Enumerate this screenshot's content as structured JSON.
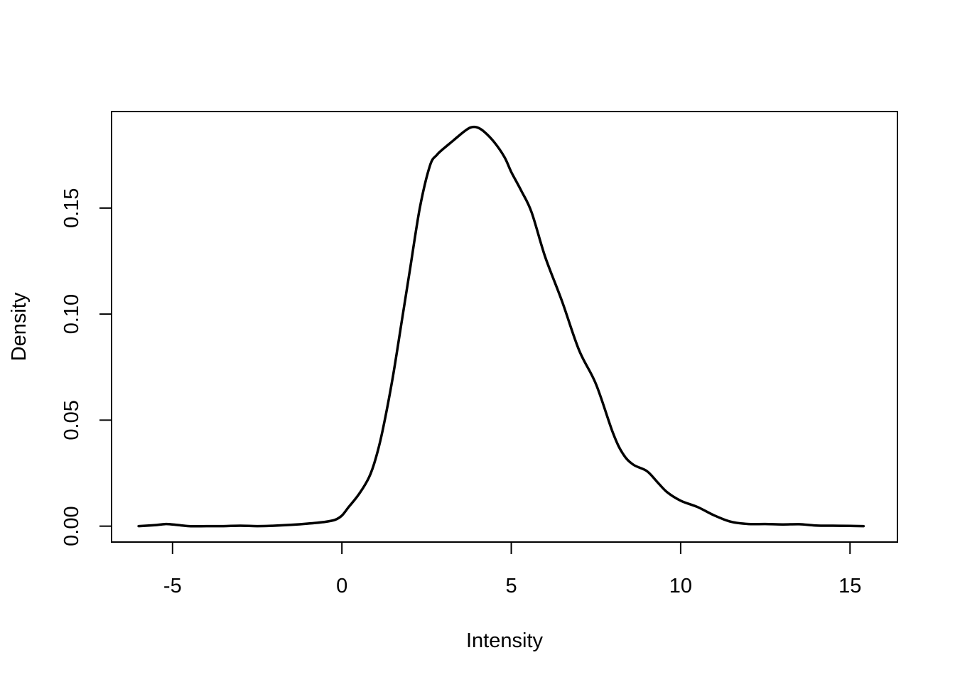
{
  "chart_data": {
    "type": "line",
    "title": "",
    "xlabel": "Intensity",
    "ylabel": "Density",
    "xlim": [
      -6.8,
      16.4
    ],
    "ylim": [
      -0.0075,
      0.1955
    ],
    "x_ticks": [
      -5,
      0,
      5,
      10,
      15
    ],
    "x_tick_labels": [
      "-5",
      "0",
      "5",
      "10",
      "15"
    ],
    "y_ticks": [
      0.0,
      0.05,
      0.1,
      0.15
    ],
    "y_tick_labels": [
      "0.00",
      "0.05",
      "0.10",
      "0.15"
    ],
    "grid": false,
    "line_color": "#000000",
    "series": [
      {
        "x": [
          -6.0,
          -5.5,
          -5.2,
          -5.0,
          -4.5,
          -4.0,
          -3.5,
          -3.0,
          -2.5,
          -2.0,
          -1.5,
          -1.0,
          -0.5,
          -0.2,
          0.0,
          0.2,
          0.5,
          0.8,
          1.0,
          1.2,
          1.5,
          1.8,
          2.0,
          2.3,
          2.6,
          2.8,
          3.0,
          3.3,
          3.6,
          3.8,
          4.0,
          4.2,
          4.5,
          4.8,
          5.0,
          5.3,
          5.6,
          6.0,
          6.5,
          7.0,
          7.5,
          8.0,
          8.3,
          8.6,
          9.0,
          9.3,
          9.6,
          10.0,
          10.5,
          11.0,
          11.5,
          12.0,
          12.5,
          13.0,
          13.5,
          14.0,
          14.5,
          15.0,
          15.4
        ],
        "y": [
          0.0,
          0.0005,
          0.001,
          0.0008,
          0.0,
          0.0,
          0.0,
          0.0002,
          0.0,
          0.0002,
          0.0006,
          0.0012,
          0.002,
          0.003,
          0.005,
          0.009,
          0.015,
          0.023,
          0.032,
          0.045,
          0.07,
          0.1,
          0.12,
          0.15,
          0.17,
          0.175,
          0.178,
          0.182,
          0.186,
          0.188,
          0.188,
          0.186,
          0.181,
          0.174,
          0.167,
          0.158,
          0.148,
          0.127,
          0.106,
          0.083,
          0.067,
          0.044,
          0.034,
          0.029,
          0.026,
          0.021,
          0.016,
          0.012,
          0.009,
          0.005,
          0.002,
          0.001,
          0.001,
          0.0008,
          0.0009,
          0.0003,
          0.0002,
          0.0001,
          0.0
        ]
      }
    ]
  }
}
